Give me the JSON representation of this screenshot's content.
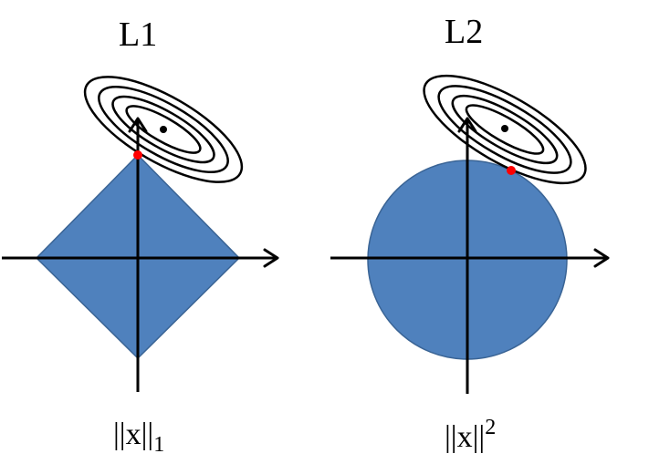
{
  "panels": [
    {
      "id": "l1",
      "title": "L1",
      "norm_base": "||x||",
      "norm_script": "1",
      "norm_script_type": "subscript",
      "region_shape": "diamond",
      "region_color": "#4f81bd",
      "region_border_color": "#3a6495",
      "contour_count": 4,
      "contour_color": "#000000",
      "tangent_point_color": "#ff0000",
      "optimum_point_color": "#000000"
    },
    {
      "id": "l2",
      "title": "L2",
      "norm_base": "||x||",
      "norm_script": "2",
      "norm_script_type": "superscript",
      "region_shape": "circle",
      "region_color": "#4f81bd",
      "region_border_color": "#3a6495",
      "contour_count": 4,
      "contour_color": "#000000",
      "tangent_point_color": "#ff0000",
      "optimum_point_color": "#000000"
    }
  ]
}
